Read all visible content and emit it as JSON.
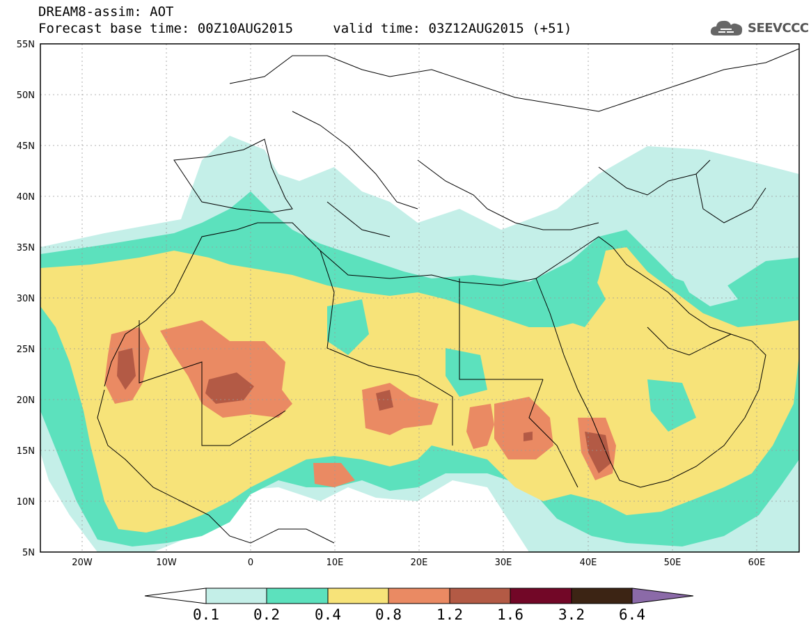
{
  "header": {
    "title": "DREAM8-assim: AOT",
    "base_time_label": "Forecast base time: 00Z10AUG2015",
    "valid_time_label": "valid time: 03Z12AUG2015 (+51)"
  },
  "logo": {
    "text": "SEEVCCC",
    "icon": "cloud-logo-icon"
  },
  "map": {
    "lat_labels": [
      "55N",
      "50N",
      "45N",
      "40N",
      "35N",
      "30N",
      "25N",
      "20N",
      "15N",
      "10N",
      "5N"
    ],
    "lon_labels": [
      "20W",
      "10W",
      "0",
      "10E",
      "20E",
      "30E",
      "40E",
      "50E",
      "60E"
    ],
    "extent": {
      "lon": [
        -25,
        65
      ],
      "lat": [
        5,
        55
      ]
    }
  },
  "colorbar": {
    "labels": [
      "0.1",
      "0.2",
      "0.4",
      "0.8",
      "1.2",
      "1.6",
      "3.2",
      "6.4"
    ],
    "colors": [
      "#ffffff",
      "#c4efe8",
      "#5ce1bd",
      "#f7e379",
      "#ea8a63",
      "#b35a45",
      "#720727",
      "#3c2414",
      "#8b6aa8"
    ]
  }
}
